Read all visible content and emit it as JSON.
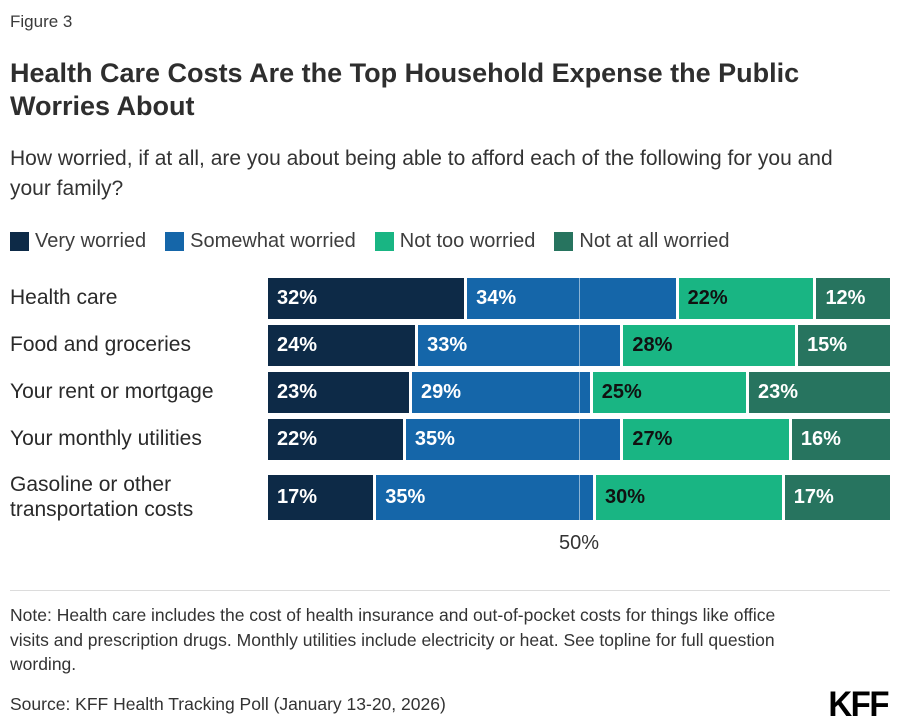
{
  "figure_label": "Figure 3",
  "title": "Health Care Costs Are the Top Household Expense the Public Worries About",
  "subtitle": "How worried, if at all, are you about being able to afford each of the following for you and your family?",
  "colors": {
    "very_worried": "#0D2A47",
    "somewhat_worried": "#1566A9",
    "not_too_worried": "#19B583",
    "not_at_all_worried": "#27745F",
    "label_on_dark_segments": "#FFFFFF",
    "label_on_teal_segment": "#111111",
    "divider": "#DCDCDC",
    "text": "#333333"
  },
  "chart_data": {
    "type": "bar",
    "stacked": true,
    "orientation": "horizontal",
    "title": "Health Care Costs Are the Top Household Expense the Public Worries About",
    "categories": [
      "Health care",
      "Food and groceries",
      "Your rent or mortgage",
      "Your monthly utilities",
      "Gasoline or other transportation costs"
    ],
    "series": [
      {
        "name": "Very worried",
        "color": "#0D2A47",
        "label_color": "#FFFFFF",
        "values": [
          32,
          24,
          23,
          22,
          17
        ]
      },
      {
        "name": "Somewhat worried",
        "color": "#1566A9",
        "label_color": "#FFFFFF",
        "values": [
          34,
          33,
          29,
          35,
          35
        ]
      },
      {
        "name": "Not too worried",
        "color": "#19B583",
        "label_color": "#111111",
        "values": [
          22,
          28,
          25,
          27,
          30
        ]
      },
      {
        "name": "Not at all worried",
        "color": "#27745F",
        "label_color": "#FFFFFF",
        "values": [
          12,
          15,
          23,
          16,
          17
        ]
      }
    ],
    "value_suffix": "%",
    "xlim": [
      0,
      100
    ],
    "gridline_at": 50,
    "axis_tick_label": "50%",
    "legend_position": "top",
    "data_labels": "inside-left"
  },
  "note": "Note: Health care includes the cost of health insurance and out-of-pocket costs for things like office visits and prescription drugs. Monthly utilities include electricity or heat. See topline for full question wording.",
  "source": "Source: KFF Health Tracking Poll (January 13-20, 2026)",
  "logo": "KFF"
}
